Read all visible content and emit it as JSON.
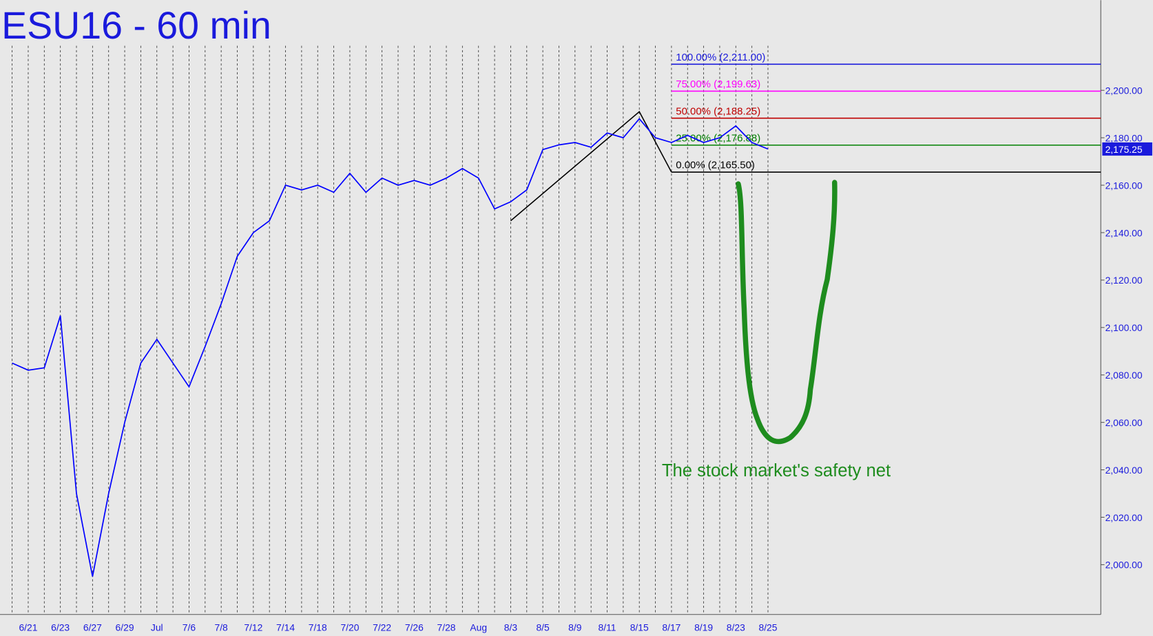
{
  "chart_data": {
    "type": "line",
    "title": "ESU16 - 60 min",
    "categories": [
      null,
      "6/21",
      null,
      "6/23",
      null,
      "6/27",
      null,
      "6/29",
      null,
      "Jul",
      null,
      "7/6",
      null,
      "7/8",
      null,
      "7/12",
      null,
      "7/14",
      null,
      "7/18",
      null,
      "7/20",
      null,
      "7/22",
      null,
      "7/26",
      null,
      "7/28",
      null,
      "Aug",
      null,
      "8/3",
      null,
      "8/5",
      null,
      "8/9",
      null,
      "8/11",
      null,
      "8/15",
      null,
      "8/17",
      null,
      "8/19",
      null,
      "8/23",
      null,
      "8/25"
    ],
    "series": [
      {
        "name": "ESU16",
        "color": "#0000ff",
        "values": [
          2085,
          2082,
          2083,
          2105,
          2030,
          1995,
          2030,
          2060,
          2085,
          2095,
          2085,
          2075,
          2092,
          2110,
          2130,
          2140,
          2145,
          2160,
          2158,
          2160,
          2157,
          2165,
          2157,
          2163,
          2160,
          2162,
          2160,
          2163,
          2167,
          2163,
          2150,
          2153,
          2158,
          2175,
          2177,
          2178,
          2176,
          2182,
          2180,
          2188,
          2180,
          2178,
          2181,
          2178,
          2180,
          2185,
          2178,
          2175.25
        ]
      }
    ],
    "last_price": {
      "value": 2175.25,
      "label": "2,175.25"
    },
    "ylim": [
      1979,
      2238
    ],
    "yticks": [
      {
        "value": 2000,
        "label": "2,000.00"
      },
      {
        "value": 2020,
        "label": "2,020.00"
      },
      {
        "value": 2040,
        "label": "2,040.00"
      },
      {
        "value": 2060,
        "label": "2,060.00"
      },
      {
        "value": 2080,
        "label": "2,080.00"
      },
      {
        "value": 2100,
        "label": "2,100.00"
      },
      {
        "value": 2120,
        "label": "2,120.00"
      },
      {
        "value": 2140,
        "label": "2,140.00"
      },
      {
        "value": 2160,
        "label": "2,160.00"
      },
      {
        "value": 2180,
        "label": "2,180.00"
      },
      {
        "value": 2200,
        "label": "2,200.00"
      }
    ],
    "grid": true,
    "trendline": {
      "categories": [
        "8/3",
        "8/15",
        "8/17"
      ],
      "values": [
        2145,
        2191,
        2165.5
      ],
      "color": "#000000"
    },
    "fib_start": "8/17",
    "fib_levels": [
      {
        "value": 2211,
        "label": "100.00% (2,211.00)",
        "color": "#1a1adc"
      },
      {
        "value": 2199.63,
        "label": "75.00% (2,199.63)",
        "color": "#ff00ff"
      },
      {
        "value": 2188.25,
        "label": "50.00% (2,188.25)",
        "color": "#c00000"
      },
      {
        "value": 2176.88,
        "label": "25.00% (2,176.88)",
        "color": "#008000"
      },
      {
        "value": 2165.5,
        "label": "0.00% (2,165.50)",
        "color": "#000000"
      }
    ],
    "annotation": "The stock market's safety net"
  }
}
